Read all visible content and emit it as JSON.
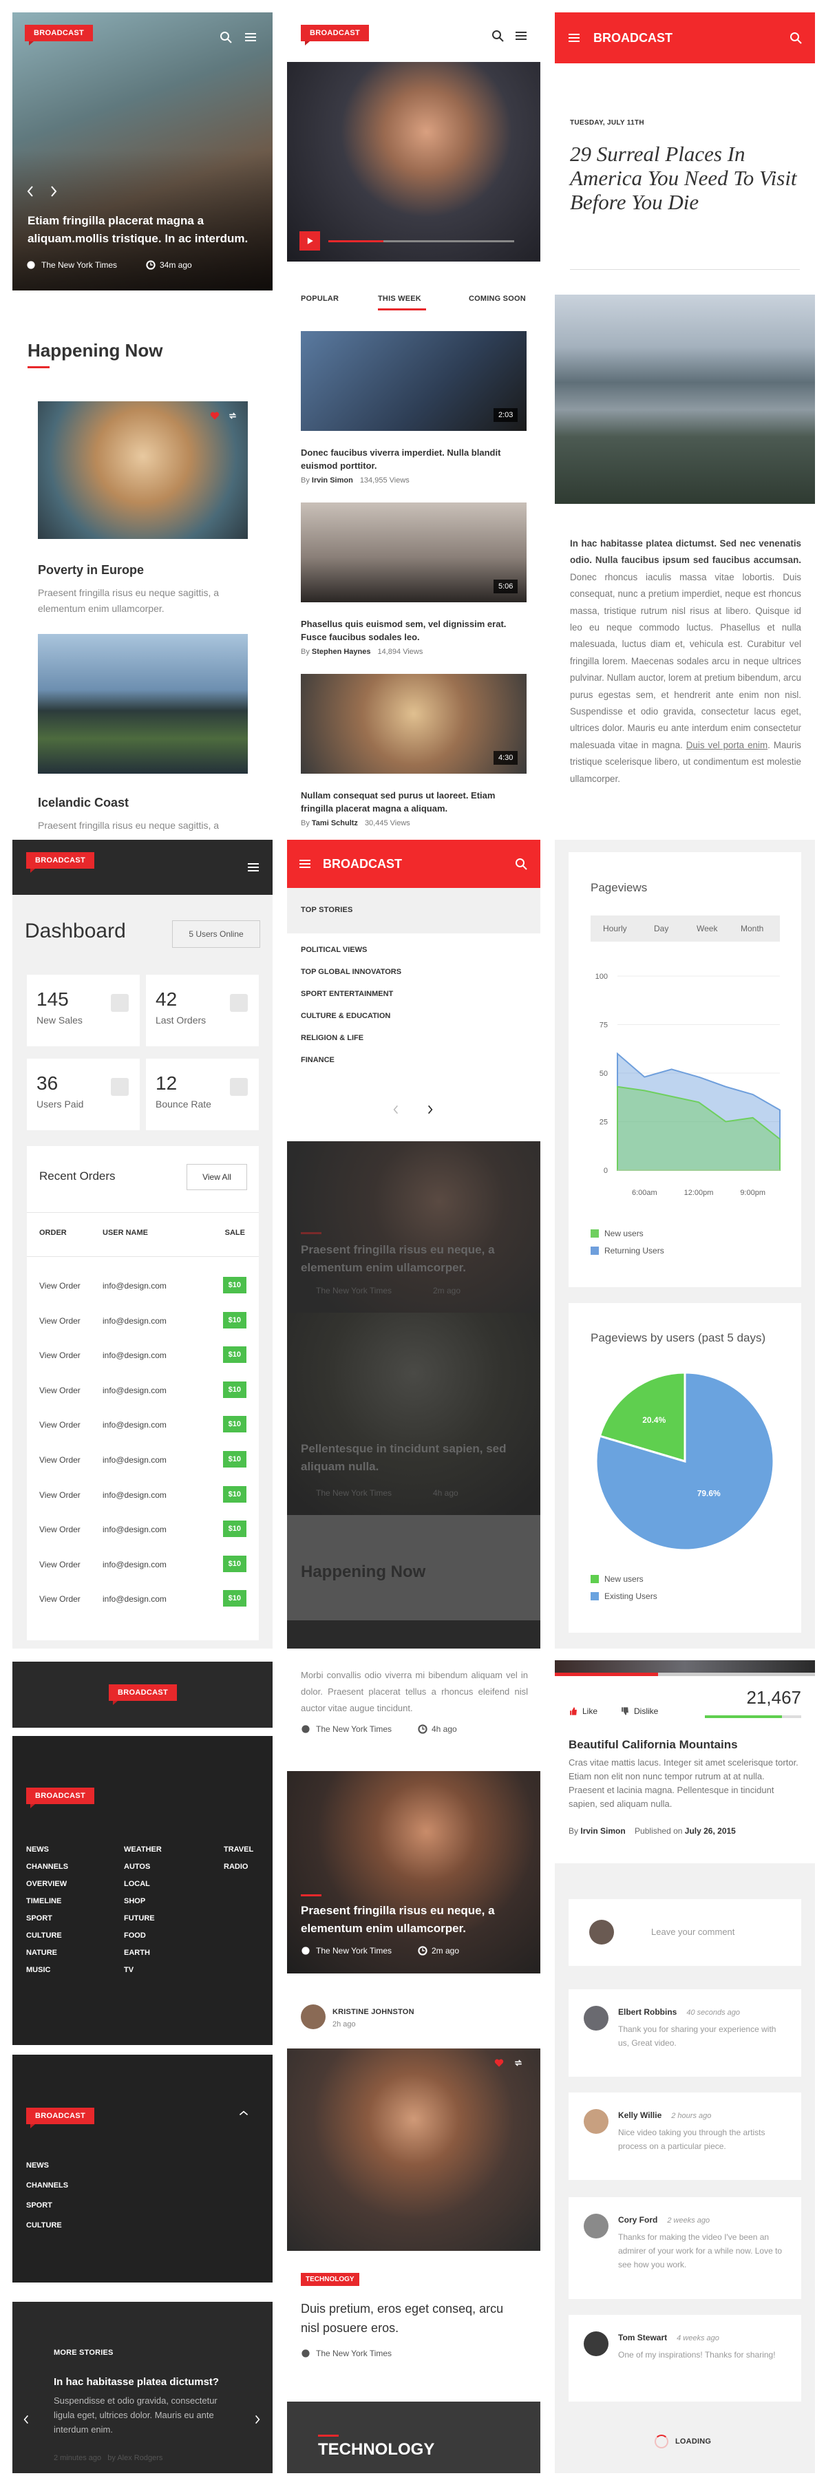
{
  "hero": {
    "badge": "BROADCAST",
    "headline": "Etiam fringilla placerat magna a aliquam.mollis tristique. In ac interdum.",
    "source": "The New York Times",
    "time": "34m ago"
  },
  "happening": {
    "title": "Happening Now",
    "cards": [
      {
        "title": "Poverty in Europe",
        "text": "Praesent fringilla risus eu neque sagittis, a elementum enim ullamcorper."
      },
      {
        "title": "Icelandic Coast",
        "text": "Praesent fringilla risus eu neque sagittis, a elementum enim ullamcorper."
      }
    ]
  },
  "video": {
    "badge": "BROADCAST",
    "tabs": [
      "POPULAR",
      "THIS WEEK",
      "COMING SOON"
    ],
    "items": [
      {
        "duration": "2:03",
        "title": "Donec faucibus viverra imperdiet. Nulla blandit euismod porttitor.",
        "by": "By",
        "author": "Irvin Simon",
        "views": "134,955 Views"
      },
      {
        "duration": "5:06",
        "title": "Phasellus quis euismod sem, vel dignissim erat. Fusce faucibus sodales leo.",
        "by": "By",
        "author": "Stephen Haynes",
        "views": "14,894 Views"
      },
      {
        "duration": "4:30",
        "title": "Nullam consequat sed purus ut laoreet. Etiam fringilla placerat magna a aliquam.",
        "by": "By",
        "author": "Tami Schultz",
        "views": "30,445 Views"
      }
    ]
  },
  "article": {
    "brand": "BROADCAST",
    "date": "TUESDAY, JULY 11TH",
    "title": "29 Surreal Places In America You Need To Visit Before You Die",
    "lead": "In hac habitasse platea dictumst. Sed nec venenatis odio. Nulla faucibus ipsum sed faucibus accumsan.",
    "body": " Donec rhoncus iaculis massa vitae lobortis. Duis consequat, nunc a pretium imperdiet, neque est rhoncus massa, tristique rutrum nisl risus at libero. Quisque id leo eu neque commodo luctus. Phasellus et nulla malesuada, luctus diam et, vehicula est. Curabitur vel fringilla lorem. Maecenas sodales arcu in neque ultrices pulvinar. Nullam auctor, lorem at pretium bibendum, arcu purus egestas sem, et hendrerit ante enim non nisl. Suspendisse et odio gravida, consectetur lacus eget, ultrices dolor. Mauris eu ante interdum enim consectetur malesuada vitae in magna. ",
    "link": "Duis vel porta enim",
    "tail": ". Mauris tristique scelerisque libero, ut condimentum est molestie ullamcorper."
  },
  "dashboard": {
    "badge": "BROADCAST",
    "title": "Dashboard",
    "online": "5 Users Online",
    "stats": [
      {
        "value": 145,
        "label": "New Sales"
      },
      {
        "value": 42,
        "label": "Last Orders"
      },
      {
        "value": 36,
        "label": "Users Paid"
      },
      {
        "value": 12,
        "label": "Bounce Rate"
      }
    ],
    "orders": {
      "title": "Recent Orders",
      "view_all": "View All",
      "columns": [
        "ORDER",
        "USER NAME",
        "SALE"
      ],
      "rows": [
        [
          "View Order",
          "info@design.com",
          "$10"
        ],
        [
          "View Order",
          "info@design.com",
          "$10"
        ],
        [
          "View Order",
          "info@design.com",
          "$10"
        ],
        [
          "View Order",
          "info@design.com",
          "$10"
        ],
        [
          "View Order",
          "info@design.com",
          "$10"
        ],
        [
          "View Order",
          "info@design.com",
          "$10"
        ],
        [
          "View Order",
          "info@design.com",
          "$10"
        ],
        [
          "View Order",
          "info@design.com",
          "$10"
        ],
        [
          "View Order",
          "info@design.com",
          "$10"
        ],
        [
          "View Order",
          "info@design.com",
          "$10"
        ]
      ]
    }
  },
  "menu": {
    "brand": "BROADCAST",
    "top": "TOP STORIES",
    "items": [
      "POLITICAL VIEWS",
      "TOP GLOBAL INNOVATORS",
      "SPORT ENTERTAINMENT",
      "CULTURE & EDUCATION",
      "RELIGION & LIFE",
      "FINANCE"
    ],
    "stories": [
      {
        "title": "Praesent fringilla risus eu neque, a elementum enim ullamcorper.",
        "source": "The New York Times",
        "time": "2m ago"
      },
      {
        "title": "Pellentesque in tincidunt sapien, sed aliquam nulla.",
        "source": "The New York Times",
        "time": "4h ago"
      }
    ],
    "section": "Happening Now"
  },
  "chart_data": [
    {
      "type": "area",
      "title": "Pageviews",
      "tabs": [
        "Hourly",
        "Day",
        "Week",
        "Month"
      ],
      "categories": [
        null,
        "6:00am",
        null,
        "12:00pm",
        null,
        "9:00pm",
        null
      ],
      "series": [
        {
          "name": "New users",
          "color": "#6fcf5f",
          "values": [
            43,
            41,
            38,
            35,
            25,
            27,
            16
          ]
        },
        {
          "name": "Returning Users",
          "color": "#6f9fdc",
          "values": [
            60,
            48,
            52,
            48,
            43,
            39,
            31
          ]
        }
      ],
      "ylim": [
        0,
        100
      ],
      "yticks": [
        0,
        25,
        50,
        75,
        100
      ],
      "grid": true
    },
    {
      "type": "pie",
      "title": "Pageviews by users (past 5 days)",
      "categories": [
        "New users",
        "Existing Users"
      ],
      "values": [
        20.4,
        79.6
      ],
      "value_labels": [
        "20.4%",
        "79.6%"
      ],
      "colors": [
        "#5fcf4f",
        "#6aa3df"
      ]
    }
  ],
  "drawer": {
    "badge_top": "BROADCAST",
    "badge": "BROADCAST",
    "columns": [
      [
        "NEWS",
        "CHANNELS",
        "OVERVIEW",
        "TIMELINE",
        "SPORT",
        "CULTURE",
        "NATURE",
        "MUSIC"
      ],
      [
        "WEATHER",
        "AUTOS",
        "LOCAL",
        "SHOP",
        "FUTURE",
        "FOOD",
        "EARTH",
        "TV"
      ],
      [
        "TRAVEL",
        "RADIO"
      ]
    ],
    "badge_small": "BROADCAST",
    "short": [
      "NEWS",
      "CHANNELS",
      "SPORT",
      "CULTURE"
    ],
    "more": {
      "label": "MORE STORIES",
      "title": "In hac habitasse platea dictumst?",
      "text": "Suspendisse et odio gravida, consectetur ligula eget, ultrices dolor. Mauris eu ante interdum enim.",
      "time": "2 minutes ago",
      "by": "by Alex Rodgers"
    }
  },
  "feed": {
    "intro": "Morbi convallis odio viverra mi bibendum aliquam vel in dolor. Praesent placerat tellus a rhoncus eleifend nisl auctor vitae augue tincidunt.",
    "intro_source": "The New York Times",
    "intro_time": "4h ago",
    "photo_title": "Praesent fringilla risus eu neque, a elementum enim ullamcorper.",
    "photo_source": "The New York Times",
    "photo_time": "2m ago",
    "author": "KRISTINE JOHNSTON",
    "author_time": "2h ago",
    "tag": "TECHNOLOGY",
    "title": "Duis pretium, eros eget conseq, arcu nisl posuere eros.",
    "source": "The New York Times",
    "section": "TECHNOLOGY"
  },
  "detail": {
    "like": "Like",
    "dislike": "Dislike",
    "views": "21,467",
    "title": "Beautiful California Mountains",
    "text": "Cras vitae mattis lacus. Integer sit amet scelerisque tortor. Etiam non elit non nunc tempor rutrum at at nulla. Praesent et lacinia magna. Pellentesque in tincidunt sapien, sed aliquam nulla.",
    "by": "By",
    "author": "Irvin Simon",
    "published": "Published on",
    "date": "July 26, 2015",
    "placeholder": "Leave your comment",
    "comments": [
      {
        "name": "Elbert Robbins",
        "time": "40 seconds ago",
        "text": "Thank you for sharing your experience with us, Great video."
      },
      {
        "name": "Kelly Willie",
        "time": "2 hours ago",
        "text": "Nice video taking you through the artists process on a particular piece."
      },
      {
        "name": "Cory Ford",
        "time": "2 weeks ago",
        "text": "Thanks for making the video I've been an admirer of your work for a while now. Love to see how you work."
      },
      {
        "name": "Tom Stewart",
        "time": "4 weeks ago",
        "text": "One of my inspirations! Thanks for sharing!"
      }
    ],
    "loading": "LOADING"
  }
}
